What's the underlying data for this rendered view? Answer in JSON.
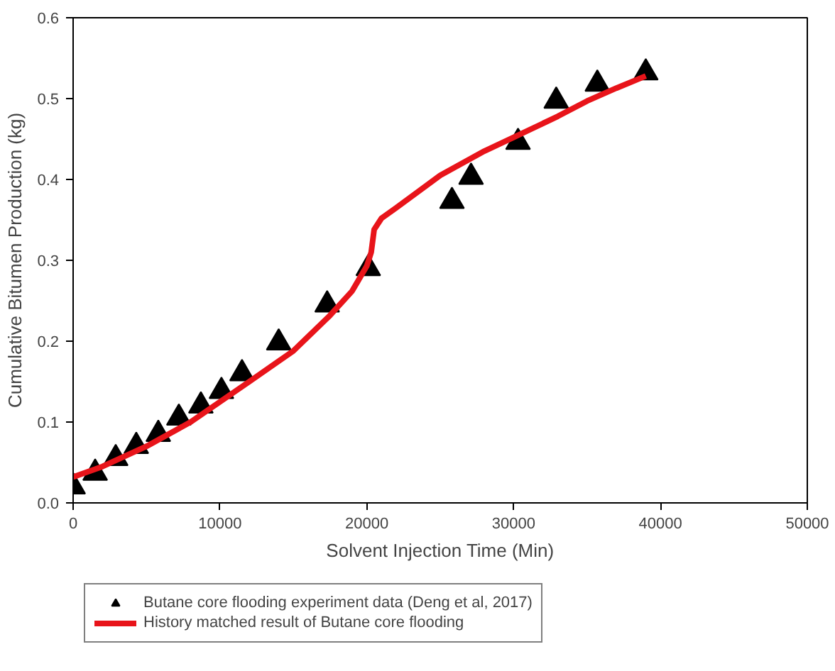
{
  "chart_data": {
    "type": "scatter",
    "xlabel": "Solvent Injection Time (Min)",
    "ylabel": "Cumulative Bitumen Production (kg)",
    "xlim": [
      0,
      50000
    ],
    "xticks": [
      0,
      10000,
      20000,
      30000,
      40000,
      50000
    ],
    "ylim": [
      0,
      0.6
    ],
    "yticks": [
      {
        "value": 0,
        "label": "0.0"
      },
      0.1,
      0.2,
      0.3,
      0.4,
      0.5,
      0.6
    ],
    "grid": false,
    "legend": "bottom",
    "series": [
      {
        "name": "Butane core flooding experiment data (Deng et al, 2017)",
        "marker": "triangle",
        "color": "#000000",
        "x": [
          0,
          1500,
          2900,
          4300,
          5800,
          7200,
          8700,
          10100,
          11500,
          14000,
          17300,
          20100,
          25800,
          27100,
          30300,
          32900,
          35700,
          39000
        ],
        "values": [
          0.02,
          0.037,
          0.055,
          0.07,
          0.085,
          0.105,
          0.12,
          0.138,
          0.16,
          0.198,
          0.245,
          0.29,
          0.373,
          0.403,
          0.446,
          0.497,
          0.518,
          0.532
        ]
      },
      {
        "name": "History matched result of Butane core flooding",
        "type": "line",
        "line_style": "solid",
        "color": "#e8141a",
        "x": [
          0,
          2000,
          5000,
          8000,
          10000,
          12000,
          15000,
          17500,
          19000,
          20000,
          20300,
          20500,
          21000,
          22000,
          25000,
          28000,
          30000,
          33000,
          35000,
          37000,
          39000
        ],
        "values": [
          0.032,
          0.045,
          0.07,
          0.1,
          0.125,
          0.15,
          0.188,
          0.232,
          0.262,
          0.293,
          0.31,
          0.338,
          0.352,
          0.365,
          0.405,
          0.435,
          0.452,
          0.478,
          0.497,
          0.513,
          0.528
        ]
      }
    ]
  }
}
